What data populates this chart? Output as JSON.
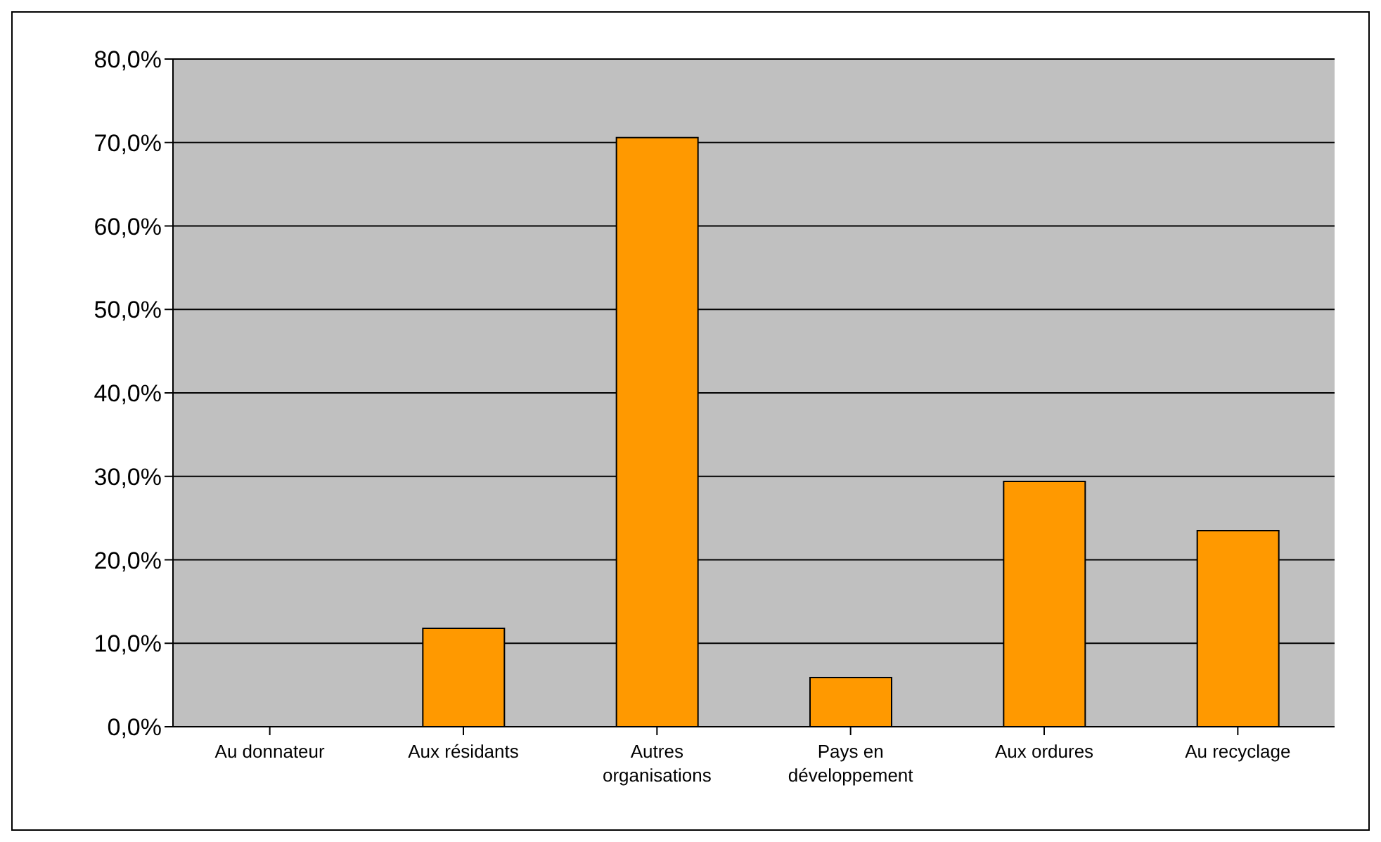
{
  "chart_data": {
    "type": "bar",
    "categories": [
      "Au donnateur",
      "Aux résidants",
      "Autres organisations",
      "Pays en développement",
      "Aux ordures",
      "Au recyclage"
    ],
    "values": [
      0,
      11.8,
      70.6,
      5.9,
      29.4,
      23.5
    ],
    "color": "#ff9900",
    "ylim": [
      0,
      80
    ],
    "yticks": [
      {
        "value": 0,
        "label": "0,0%"
      },
      {
        "value": 10,
        "label": "10,0%"
      },
      {
        "value": 20,
        "label": "20,0%"
      },
      {
        "value": 30,
        "label": "30,0%"
      },
      {
        "value": 40,
        "label": "40,0%"
      },
      {
        "value": 50,
        "label": "50,0%"
      },
      {
        "value": 60,
        "label": "60,0%"
      },
      {
        "value": 70,
        "label": "70,0%"
      },
      {
        "value": 80,
        "label": "80,0%"
      }
    ],
    "grid": "y",
    "legend": false
  }
}
